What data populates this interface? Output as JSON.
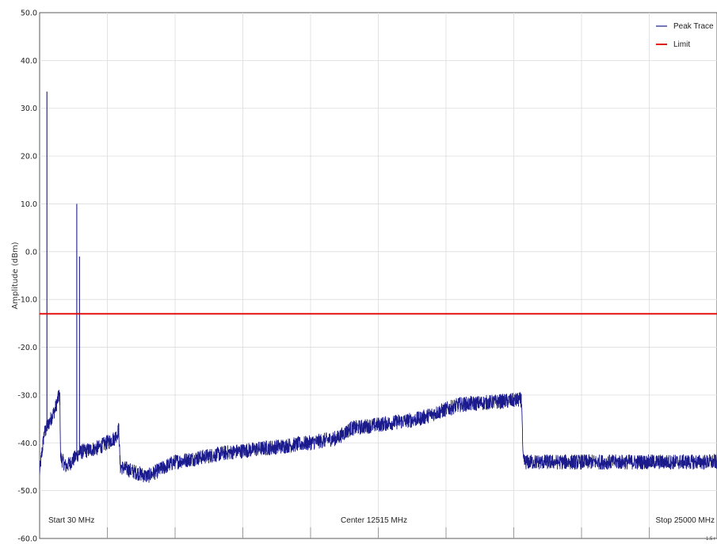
{
  "chart_data": {
    "type": "line",
    "ylabel": "Amplitude (dBm)",
    "ylim": [
      -60,
      50
    ],
    "yticks": [
      "50.0",
      "40.0",
      "30.0",
      "20.0",
      "10.0",
      "0.0",
      "-10.0",
      "-20.0",
      "-30.0",
      "-40.0",
      "-50.0",
      "-60.0"
    ],
    "xlim_mhz": [
      30,
      25000
    ],
    "x_labels": {
      "start": "Start 30 MHz",
      "center": "Center 12515 MHz",
      "stop": "Stop 25000 MHz"
    },
    "corner_note": "1.5 r",
    "grid": true,
    "legend_position": "top-right",
    "series": [
      {
        "name": "Peak Trace",
        "color": "#1a1a8c",
        "noise_floor": [
          [
            30,
            -46
          ],
          [
            200,
            -38
          ],
          [
            600,
            -33
          ],
          [
            750,
            -30
          ],
          [
            780,
            -31
          ],
          [
            800,
            -43
          ],
          [
            1000,
            -45
          ],
          [
            1200,
            -44
          ],
          [
            1500,
            -42
          ],
          [
            2200,
            -41
          ],
          [
            2800,
            -39
          ],
          [
            2900,
            -38
          ],
          [
            2950,
            -37
          ],
          [
            3000,
            -45
          ],
          [
            3500,
            -46
          ],
          [
            4000,
            -47
          ],
          [
            5000,
            -44
          ],
          [
            7000,
            -42
          ],
          [
            10000,
            -40
          ],
          [
            11000,
            -39
          ],
          [
            11500,
            -37
          ],
          [
            14000,
            -35
          ],
          [
            15500,
            -32
          ],
          [
            17800,
            -31
          ],
          [
            17850,
            -44
          ],
          [
            20000,
            -44
          ],
          [
            25000,
            -44
          ]
        ],
        "spikes": [
          [
            300,
            33.5
          ],
          [
            1400,
            10.0
          ],
          [
            1500,
            -1.0
          ]
        ]
      },
      {
        "name": "Limit",
        "color": "#e00000",
        "y": -13.0
      }
    ]
  }
}
